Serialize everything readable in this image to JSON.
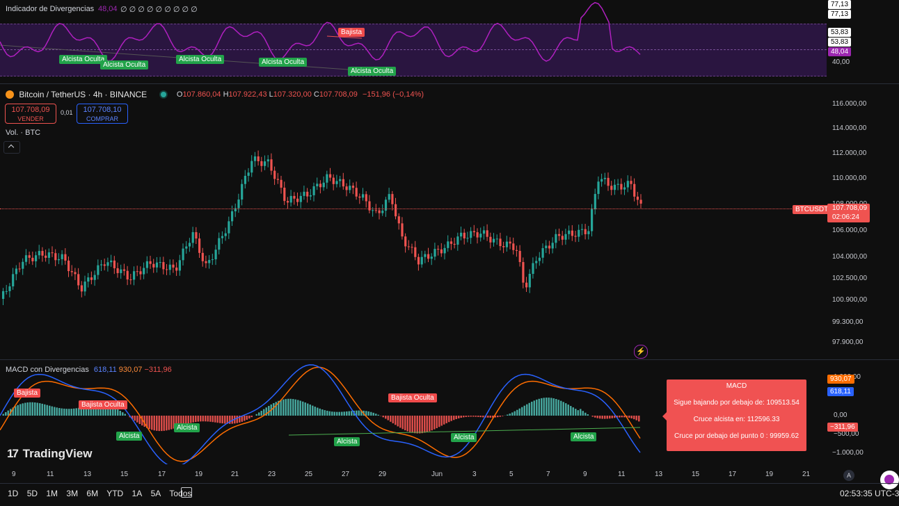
{
  "divergence_panel": {
    "title": "Indicador de Divergencias",
    "value": "48,04",
    "zeros": "∅ ∅ ∅ ∅ ∅ ∅ ∅ ∅ ∅",
    "axis": [
      "77,13",
      "77,13",
      "53,83",
      "53,83",
      "48,04",
      "40,00"
    ],
    "tags": [
      {
        "text": "Alcista Oculta",
        "kind": "green"
      },
      {
        "text": "Alcista Oculta",
        "kind": "green"
      },
      {
        "text": "Alcista Oculta",
        "kind": "green"
      },
      {
        "text": "Alcista Oculta",
        "kind": "green"
      },
      {
        "text": "Alcista Oculta",
        "kind": "green"
      },
      {
        "text": "Bajista",
        "kind": "red"
      }
    ]
  },
  "symbol": {
    "name": "Bitcoin / TetherUS · 4h · BINANCE",
    "O_label": "O",
    "O": "107.860,04",
    "H_label": "H",
    "H": "107.922,43",
    "L_label": "L",
    "L": "107.320,00",
    "C_label": "C",
    "C": "107.708,09",
    "change": "−151,96 (−0,14%)"
  },
  "trade": {
    "sell_price": "107.708,09",
    "sell_label": "VENDER",
    "spread": "0,01",
    "buy_price": "107.708,10",
    "buy_label": "COMPRAR"
  },
  "volume_label": "Vol. · BTC",
  "collapse_icon": "chevron-up-icon",
  "price_axis": [
    "116.000,00",
    "114.000,00",
    "112.000,00",
    "110.000,00",
    "108.000,00",
    "106.000,00",
    "104.000,00",
    "102.500,00",
    "100.900,00",
    "99.300,00",
    "97.900,00"
  ],
  "last_price": {
    "symbol_tag": "BTCUSDT",
    "price": "107.708,09",
    "countdown": "02:06:24"
  },
  "macd": {
    "title": "MACD con Divergencias",
    "v1": "618,11",
    "v2": "930,07",
    "v3": "−311,96",
    "axis": [
      "1.000,00",
      "0,00",
      "−500,00",
      "−1.000,00"
    ],
    "badges": [
      "930,07",
      "618,11",
      "−311,96"
    ],
    "tags": [
      {
        "text": "Bajista",
        "kind": "red"
      },
      {
        "text": "Bajista Oculta",
        "kind": "red"
      },
      {
        "text": "Bajista Oculta",
        "kind": "red"
      },
      {
        "text": "Alcista",
        "kind": "green"
      },
      {
        "text": "Alcista",
        "kind": "green"
      },
      {
        "text": "Alcista",
        "kind": "green"
      },
      {
        "text": "Alcista",
        "kind": "green"
      },
      {
        "text": "Alcista",
        "kind": "green"
      }
    ]
  },
  "popup": {
    "title": "MACD",
    "line1": "Sigue bajando por debajo de: 109513.54",
    "line2": "Cruce alcista en: 112596.33",
    "line3": "Cruce por debajo del punto 0 : 99959.62"
  },
  "logo": "TradingView",
  "time_axis": [
    "9",
    "11",
    "13",
    "15",
    "17",
    "19",
    "21",
    "23",
    "25",
    "27",
    "29",
    "Jun",
    "3",
    "5",
    "7",
    "9",
    "11",
    "13",
    "15",
    "17",
    "19",
    "21"
  ],
  "auto_label": "A",
  "ranges": [
    "1D",
    "5D",
    "1M",
    "3M",
    "6M",
    "YTD",
    "1A",
    "5A",
    "Todos"
  ],
  "clock": "02:53:35 UTC-3",
  "colors": {
    "up": "#26a69a",
    "down": "#ef5350",
    "rsi": "#9c27b0",
    "macd": "#2962ff",
    "signal": "#ff6d00"
  }
}
